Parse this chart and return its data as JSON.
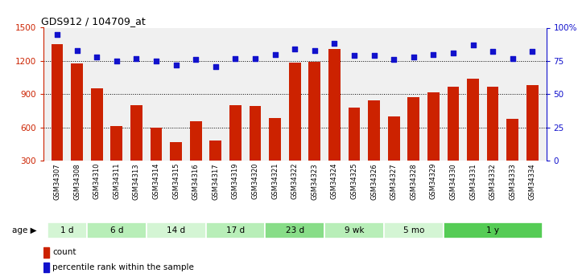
{
  "title": "GDS912 / 104709_at",
  "samples": [
    "GSM34307",
    "GSM34308",
    "GSM34310",
    "GSM34311",
    "GSM34313",
    "GSM34314",
    "GSM34315",
    "GSM34316",
    "GSM34317",
    "GSM34319",
    "GSM34320",
    "GSM34321",
    "GSM34322",
    "GSM34323",
    "GSM34324",
    "GSM34325",
    "GSM34326",
    "GSM34327",
    "GSM34328",
    "GSM34329",
    "GSM34330",
    "GSM34331",
    "GSM34332",
    "GSM34333",
    "GSM34334"
  ],
  "bar_values": [
    1350,
    1175,
    955,
    610,
    800,
    600,
    470,
    655,
    480,
    800,
    790,
    685,
    1185,
    1195,
    1310,
    780,
    845,
    700,
    870,
    920,
    965,
    1040,
    970,
    680,
    985
  ],
  "dot_values": [
    95,
    83,
    78,
    75,
    77,
    75,
    72,
    76,
    71,
    77,
    77,
    80,
    84,
    83,
    88,
    79,
    79,
    76,
    78,
    80,
    81,
    87,
    82,
    77,
    82
  ],
  "age_groups": [
    {
      "label": "1 d",
      "start": 0,
      "end": 2,
      "color": "#d4f5d4"
    },
    {
      "label": "6 d",
      "start": 2,
      "end": 5,
      "color": "#b8eeb8"
    },
    {
      "label": "14 d",
      "start": 5,
      "end": 8,
      "color": "#d4f5d4"
    },
    {
      "label": "17 d",
      "start": 8,
      "end": 11,
      "color": "#b8eeb8"
    },
    {
      "label": "23 d",
      "start": 11,
      "end": 14,
      "color": "#88dd88"
    },
    {
      "label": "9 wk",
      "start": 14,
      "end": 17,
      "color": "#b8eeb8"
    },
    {
      "label": "5 mo",
      "start": 17,
      "end": 20,
      "color": "#d4f5d4"
    },
    {
      "label": "1 y",
      "start": 20,
      "end": 25,
      "color": "#55cc55"
    }
  ],
  "bar_color": "#cc2200",
  "dot_color": "#1111cc",
  "ylim_left": [
    300,
    1500
  ],
  "ylim_right": [
    0,
    100
  ],
  "yticks_left": [
    300,
    600,
    900,
    1200,
    1500
  ],
  "yticks_right": [
    0,
    25,
    50,
    75,
    100
  ],
  "ytick_labels_right": [
    "0",
    "25",
    "50",
    "75",
    "100%"
  ],
  "gridlines": [
    600,
    900,
    1200
  ],
  "bar_width": 0.6,
  "bg_color": "#f0f0f0"
}
